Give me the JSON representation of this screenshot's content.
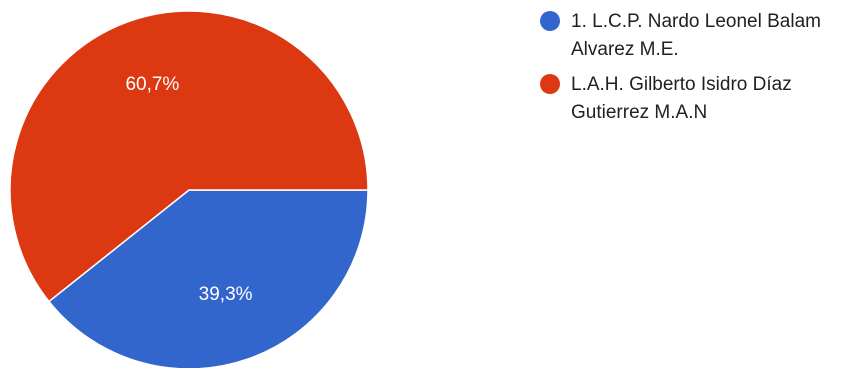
{
  "chart_data": {
    "type": "pie",
    "slices": [
      {
        "legend": "1. L.C.P. Nardo Leonel Balam Alvarez M.E.",
        "value": 39.3,
        "label": "39,3%",
        "color": "#3366cc"
      },
      {
        "legend": "L.A.H. Gilberto Isidro Díaz Gutierrez M.A.N",
        "value": 60.7,
        "label": "60,7%",
        "color": "#dc3912"
      }
    ],
    "start_angle_deg": 90,
    "direction": "clockwise",
    "legend_position": "right"
  }
}
